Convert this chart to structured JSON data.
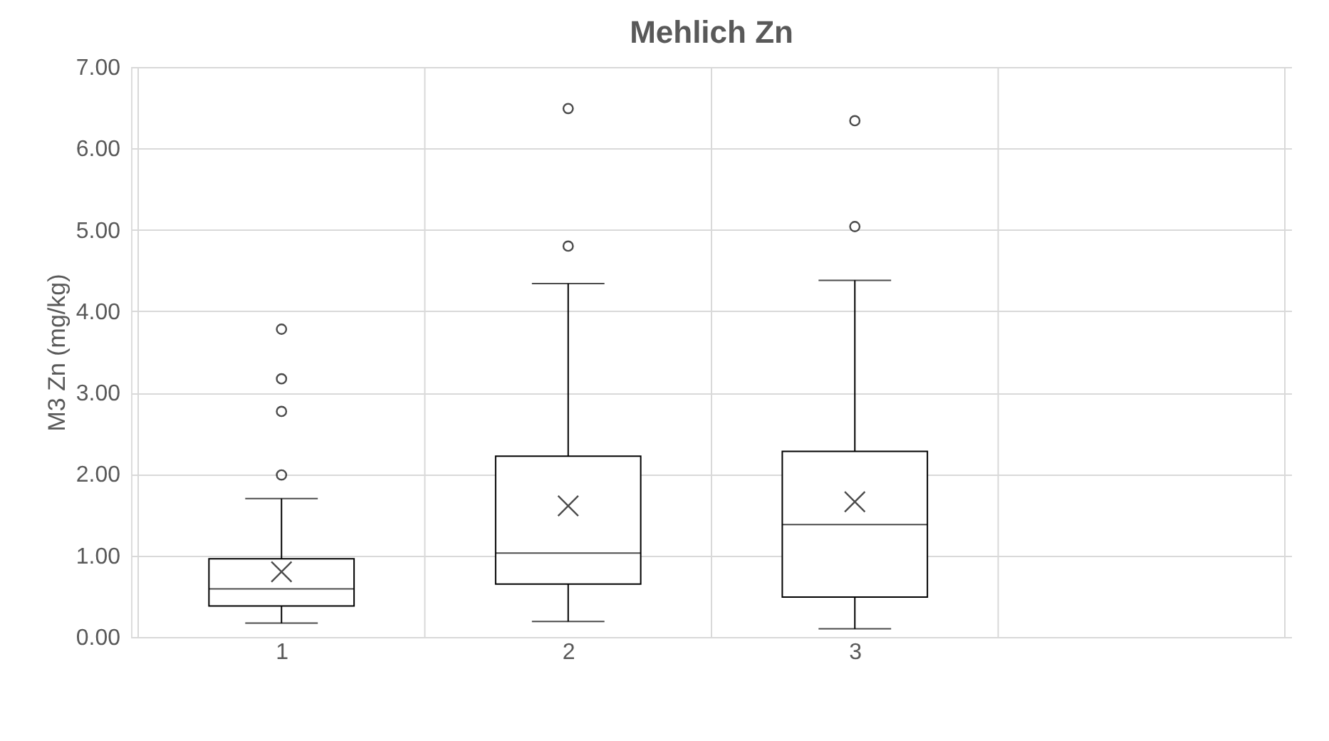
{
  "chart_data": {
    "type": "box",
    "title": "Mehlich Zn",
    "ylabel": "M3 Zn (mg/kg)",
    "categories": [
      "1",
      "2",
      "3",
      null
    ],
    "boxes": [
      {
        "low": 0.17,
        "q1": 0.38,
        "median": 0.59,
        "q3": 0.96,
        "high": 1.7,
        "mean": 0.8,
        "outliers": [
          1.99,
          2.77,
          3.17,
          3.78
        ]
      },
      {
        "low": 0.19,
        "q1": 0.65,
        "median": 1.03,
        "q3": 2.22,
        "high": 4.34,
        "mean": 1.61,
        "outliers": [
          4.8,
          6.49
        ]
      },
      {
        "low": 0.1,
        "q1": 0.49,
        "median": 1.38,
        "q3": 2.28,
        "high": 4.38,
        "mean": 1.66,
        "outliers": [
          5.04,
          6.34
        ]
      },
      null
    ],
    "color": "#000000",
    "ylim": [
      0,
      7
    ],
    "yticks": [
      {
        "value": 0,
        "label": "0.00"
      },
      {
        "value": 1,
        "label": "1.00"
      },
      {
        "value": 2,
        "label": "2.00"
      },
      {
        "value": 3,
        "label": "3.00"
      },
      {
        "value": 4,
        "label": "4.00"
      },
      {
        "value": 5,
        "label": "5.00"
      },
      {
        "value": 6,
        "label": "6.00"
      },
      {
        "value": 7,
        "label": "7.00"
      }
    ],
    "grid": true,
    "marker": "cross"
  }
}
